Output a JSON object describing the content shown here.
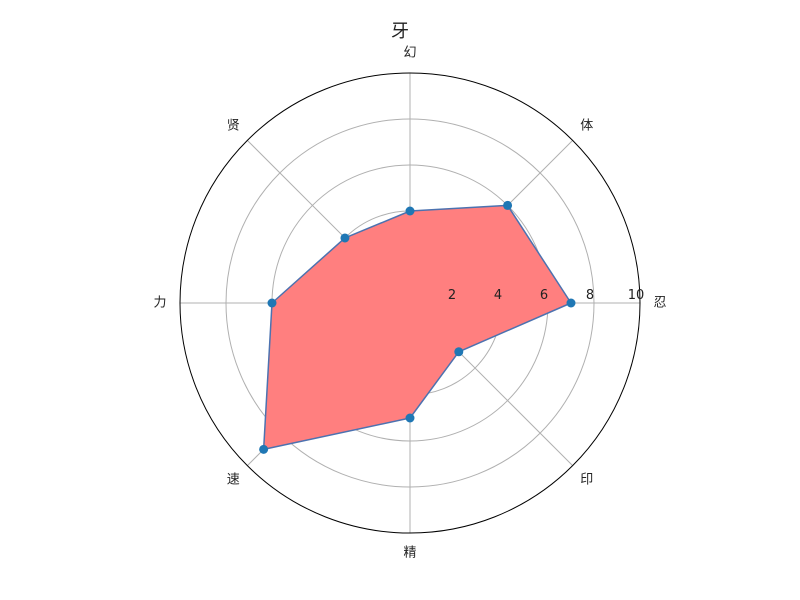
{
  "chart_data": {
    "type": "radar",
    "title": "牙",
    "categories": [
      "忍",
      "体",
      "幻",
      "贤",
      "力",
      "速",
      "精",
      "印"
    ],
    "series": [
      {
        "values": [
          7,
          6,
          4,
          4,
          6,
          9,
          5,
          3
        ]
      }
    ],
    "rlim": [
      0,
      10
    ],
    "rticks": [
      2,
      4,
      6,
      8,
      10
    ],
    "grid": true,
    "colors": {
      "fill": "#ff7f7f",
      "line": "#4c72b0",
      "marker": "#1f77b4",
      "grid": "#b0b0b0",
      "frame": "#000000"
    }
  }
}
